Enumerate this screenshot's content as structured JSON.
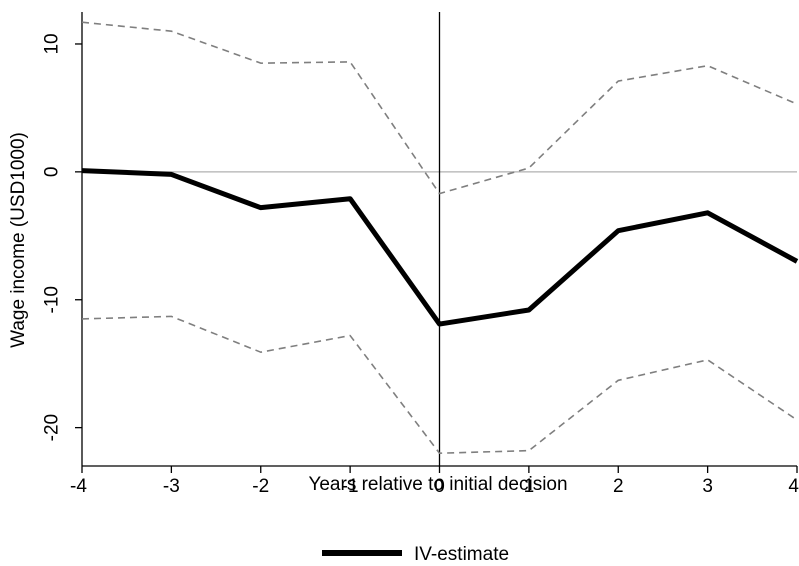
{
  "chart_data": {
    "type": "line",
    "title": "",
    "xlabel": "Years relative to initial decision",
    "ylabel": "Wage income (USD1000)",
    "x": [
      -4,
      -3,
      -2,
      -1,
      0,
      1,
      2,
      3,
      4
    ],
    "xticks": [
      "-4",
      "-3",
      "-2",
      "-1",
      "0",
      "1",
      "2",
      "3",
      "4"
    ],
    "yticks": [
      {
        "value": 10,
        "label": "10"
      },
      {
        "value": 0,
        "label": "0"
      },
      {
        "value": -10,
        "label": "-10"
      },
      {
        "value": -20,
        "label": "-20"
      }
    ],
    "xlim": [
      -4,
      4
    ],
    "ylim": [
      -23,
      12.5
    ],
    "reference_lines": {
      "horizontal_at_y": 0,
      "vertical_at_x": 0
    },
    "series": [
      {
        "name": "IV-estimate",
        "style": "solid-thick",
        "color": "#000000",
        "values": [
          0.1,
          -0.2,
          -2.8,
          -2.1,
          -11.9,
          -10.8,
          -4.6,
          -3.2,
          -7.0
        ]
      },
      {
        "style": "dashed",
        "color": "#7f7f7f",
        "values": [
          11.7,
          11.0,
          8.5,
          8.6,
          -1.7,
          0.3,
          7.1,
          8.3,
          5.3
        ]
      },
      {
        "style": "dashed",
        "color": "#7f7f7f",
        "values": [
          -11.5,
          -11.3,
          -14.1,
          -12.8,
          -22.0,
          -21.8,
          -16.3,
          -14.7,
          -19.4
        ]
      }
    ],
    "legend": {
      "placement": "bottom-center",
      "label": "IV-estimate"
    }
  }
}
